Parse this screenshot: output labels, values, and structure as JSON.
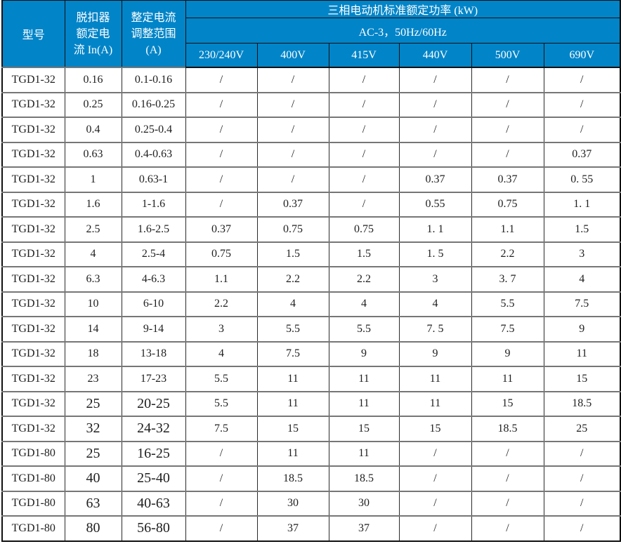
{
  "colors": {
    "header_bg": "#0184c8",
    "header_text": "#ffffff",
    "body_text": "#1f1f1f",
    "grid_dark": "#101010",
    "grid_gray": "#767676"
  },
  "table": {
    "header": {
      "col_model": "型号",
      "col_in": "脱扣器\n额定电\n流 In(A)",
      "col_range": "整定电流\n调整范围\n(A)",
      "kw_title": "三相电动机标准额定功率 (kW)",
      "ac_label": "AC-3，50Hz/60Hz",
      "voltages": [
        "230/240V",
        "400V",
        "415V",
        "440V",
        "500V",
        "690V"
      ]
    },
    "rows": [
      {
        "model": "TGD1-32",
        "in": "0.16",
        "range": "0.1-0.16",
        "powers": [
          "/",
          "/",
          "/",
          "/",
          "/",
          "/"
        ],
        "large": false
      },
      {
        "model": "TGD1-32",
        "in": "0.25",
        "range": "0.16-0.25",
        "powers": [
          "/",
          "/",
          "/",
          "/",
          "/",
          "/"
        ],
        "large": false
      },
      {
        "model": "TGD1-32",
        "in": "0.4",
        "range": "0.25-0.4",
        "powers": [
          "/",
          "/",
          "/",
          "/",
          "/",
          "/"
        ],
        "large": false
      },
      {
        "model": "TGD1-32",
        "in": "0.63",
        "range": "0.4-0.63",
        "powers": [
          "/",
          "/",
          "/",
          "/",
          "/",
          "0.37"
        ],
        "large": false
      },
      {
        "model": "TGD1-32",
        "in": "1",
        "range": "0.63-1",
        "powers": [
          "/",
          "/",
          "/",
          "0.37",
          "0.37",
          "0. 55"
        ],
        "large": false
      },
      {
        "model": "TGD1-32",
        "in": "1.6",
        "range": "1-1.6",
        "powers": [
          "/",
          "0.37",
          "/",
          "0.55",
          "0.75",
          "1. 1"
        ],
        "large": false
      },
      {
        "model": "TGD1-32",
        "in": "2.5",
        "range": "1.6-2.5",
        "powers": [
          "0.37",
          "0.75",
          "0.75",
          "1. 1",
          "1.1",
          "1.5"
        ],
        "large": false
      },
      {
        "model": "TGD1-32",
        "in": "4",
        "range": "2.5-4",
        "powers": [
          "0.75",
          "1.5",
          "1.5",
          "1. 5",
          "2.2",
          "3"
        ],
        "large": false
      },
      {
        "model": "TGD1-32",
        "in": "6.3",
        "range": "4-6.3",
        "powers": [
          "1.1",
          "2.2",
          "2.2",
          "3",
          "3. 7",
          "4"
        ],
        "large": false
      },
      {
        "model": "TGD1-32",
        "in": "10",
        "range": "6-10",
        "powers": [
          "2.2",
          "4",
          "4",
          "4",
          "5.5",
          "7.5"
        ],
        "large": false
      },
      {
        "model": "TGD1-32",
        "in": "14",
        "range": "9-14",
        "powers": [
          "3",
          "5.5",
          "5.5",
          "7. 5",
          "7.5",
          "9"
        ],
        "large": false
      },
      {
        "model": "TGD1-32",
        "in": "18",
        "range": "13-18",
        "powers": [
          "4",
          "7.5",
          "9",
          "9",
          "9",
          "11"
        ],
        "large": false
      },
      {
        "model": "TGD1-32",
        "in": "23",
        "range": "17-23",
        "powers": [
          "5.5",
          "11",
          "11",
          "11",
          "11",
          "15"
        ],
        "large": false
      },
      {
        "model": "TGD1-32",
        "in": "25",
        "range": "20-25",
        "powers": [
          "5.5",
          "11",
          "11",
          "11",
          "15",
          "18.5"
        ],
        "large": true
      },
      {
        "model": "TGD1-32",
        "in": "32",
        "range": "24-32",
        "powers": [
          "7.5",
          "15",
          "15",
          "15",
          "18.5",
          "25"
        ],
        "large": true
      },
      {
        "model": "TGD1-80",
        "in": "25",
        "range": "16-25",
        "powers": [
          "/",
          "11",
          "11",
          "/",
          "/",
          "/"
        ],
        "large": true
      },
      {
        "model": "TGD1-80",
        "in": "40",
        "range": "25-40",
        "powers": [
          "/",
          "18.5",
          "18.5",
          "/",
          "/",
          "/"
        ],
        "large": true
      },
      {
        "model": "TGD1-80",
        "in": "63",
        "range": "40-63",
        "powers": [
          "/",
          "30",
          "30",
          "/",
          "/",
          "/"
        ],
        "large": true
      },
      {
        "model": "TGD1-80",
        "in": "80",
        "range": "56-80",
        "powers": [
          "/",
          "37",
          "37",
          "/",
          "/",
          "/"
        ],
        "large": true
      }
    ]
  }
}
